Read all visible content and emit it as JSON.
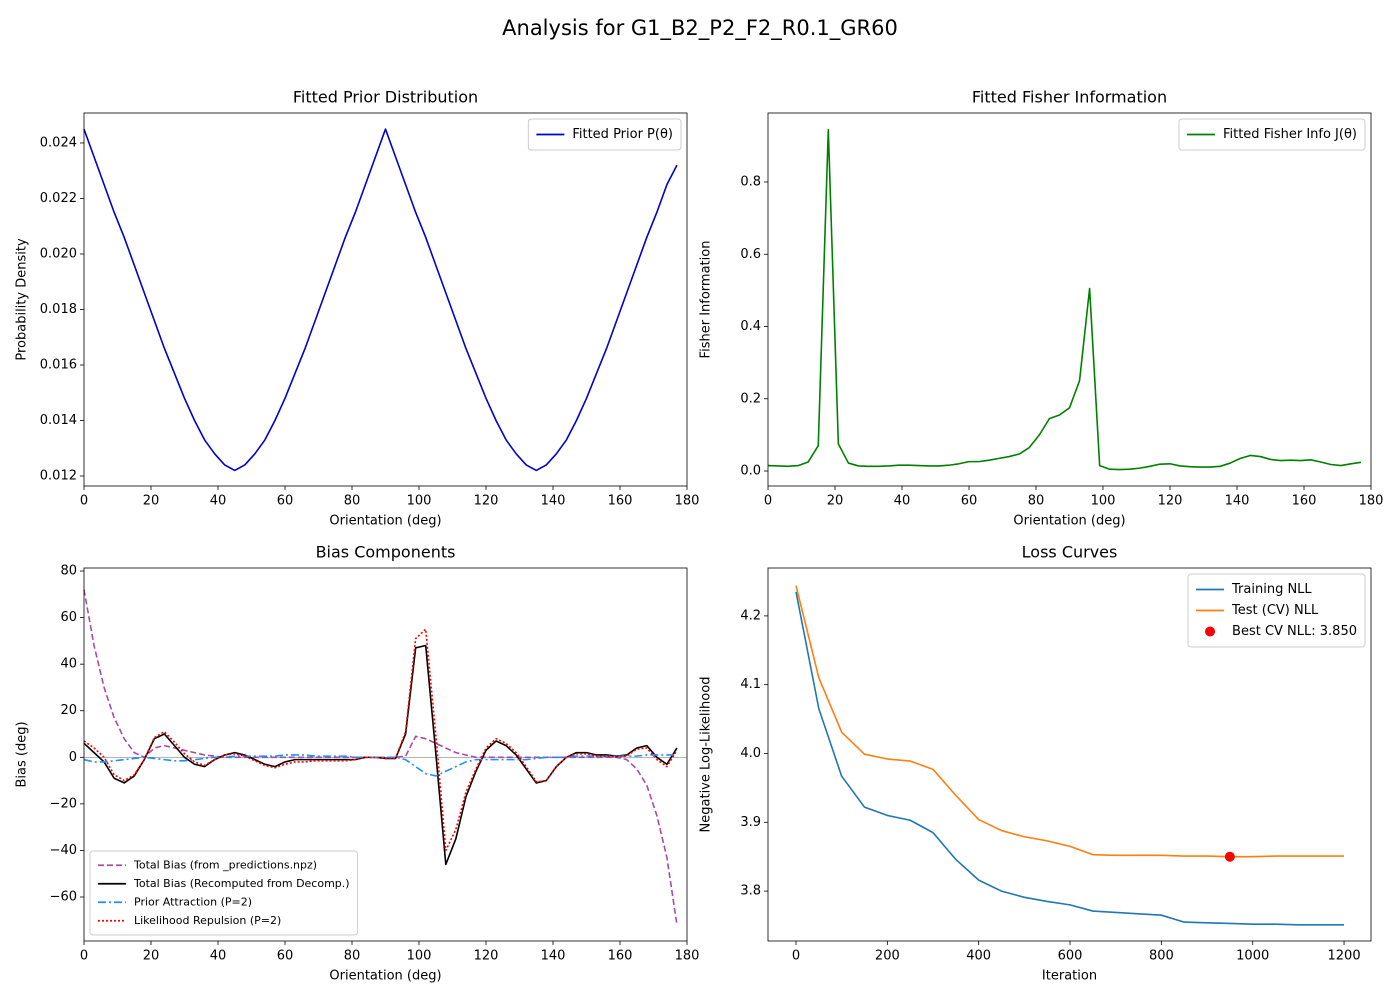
{
  "title": "Analysis for G1_B2_P2_F2_R0.1_GR60",
  "chart_data": [
    {
      "type": "line",
      "title": "Fitted Prior Distribution",
      "xlabel": "Orientation (deg)",
      "ylabel": "Probability Density",
      "x": [
        0,
        3,
        6,
        9,
        12,
        15,
        18,
        21,
        24,
        27,
        30,
        33,
        36,
        39,
        42,
        45,
        48,
        51,
        54,
        57,
        60,
        63,
        66,
        69,
        72,
        75,
        78,
        81,
        84,
        87,
        90,
        93,
        96,
        99,
        102,
        105,
        108,
        111,
        114,
        117,
        120,
        123,
        126,
        129,
        132,
        135,
        138,
        141,
        144,
        147,
        150,
        153,
        156,
        159,
        162,
        165,
        168,
        171,
        174,
        177
      ],
      "series": [
        {
          "name": "Fitted Prior P(θ)",
          "color": "#0000cd",
          "dash": "solid",
          "values": [
            0.0245,
            0.0235,
            0.0225,
            0.0215,
            0.0206,
            0.0196,
            0.0186,
            0.0176,
            0.0166,
            0.0157,
            0.0148,
            0.014,
            0.0133,
            0.0128,
            0.0124,
            0.0122,
            0.0124,
            0.0128,
            0.0133,
            0.014,
            0.0148,
            0.0157,
            0.0166,
            0.0176,
            0.0186,
            0.0196,
            0.0206,
            0.0215,
            0.0225,
            0.0235,
            0.0245,
            0.0235,
            0.0225,
            0.0215,
            0.0206,
            0.0196,
            0.0186,
            0.0176,
            0.0166,
            0.0157,
            0.0148,
            0.014,
            0.0133,
            0.0128,
            0.0124,
            0.0122,
            0.0124,
            0.0128,
            0.0133,
            0.014,
            0.0148,
            0.0157,
            0.0166,
            0.0176,
            0.0186,
            0.0196,
            0.0206,
            0.0215,
            0.0225,
            0.0232
          ]
        }
      ],
      "xlim": [
        0,
        180
      ],
      "ylim": [
        0.01164,
        0.02508
      ],
      "xticks": [
        0,
        20,
        40,
        60,
        80,
        100,
        120,
        140,
        160,
        180
      ],
      "yticks": [
        0.012,
        0.014,
        0.016,
        0.018,
        {
          "value": 0.02,
          "label": "0.020"
        },
        0.022,
        0.024
      ],
      "legend": "upper right"
    },
    {
      "type": "line",
      "title": "Fitted Fisher Information",
      "xlabel": "Orientation (deg)",
      "ylabel": "Fisher Information",
      "x": [
        0,
        3,
        6,
        9,
        12,
        15,
        18,
        21,
        24,
        27,
        30,
        33,
        36,
        39,
        42,
        45,
        48,
        51,
        54,
        57,
        60,
        63,
        66,
        69,
        72,
        75,
        78,
        81,
        84,
        87,
        90,
        93,
        96,
        99,
        102,
        105,
        108,
        111,
        114,
        117,
        120,
        123,
        126,
        129,
        132,
        135,
        138,
        141,
        144,
        147,
        150,
        153,
        156,
        159,
        162,
        165,
        168,
        171,
        174,
        177
      ],
      "series": [
        {
          "name": "Fitted Fisher Info J(θ)",
          "color": "#008000",
          "dash": "solid",
          "values": [
            0.015,
            0.014,
            0.013,
            0.015,
            0.025,
            0.07,
            0.945,
            0.075,
            0.022,
            0.014,
            0.013,
            0.013,
            0.014,
            0.016,
            0.016,
            0.015,
            0.014,
            0.014,
            0.016,
            0.02,
            0.026,
            0.026,
            0.03,
            0.035,
            0.04,
            0.047,
            0.065,
            0.1,
            0.145,
            0.155,
            0.175,
            0.25,
            0.505,
            0.015,
            0.005,
            0.004,
            0.005,
            0.008,
            0.013,
            0.019,
            0.02,
            0.014,
            0.012,
            0.011,
            0.011,
            0.013,
            0.022,
            0.035,
            0.043,
            0.04,
            0.032,
            0.029,
            0.03,
            0.029,
            0.031,
            0.025,
            0.018,
            0.015,
            0.02,
            0.024
          ]
        }
      ],
      "xlim": [
        0,
        180
      ],
      "ylim": [
        -0.0415,
        0.991
      ],
      "xticks": [
        0,
        20,
        40,
        60,
        80,
        100,
        120,
        140,
        160,
        180
      ],
      "yticks": [
        {
          "value": 0,
          "label": "0.0"
        },
        0.2,
        0.4,
        0.6,
        0.8
      ],
      "legend": "upper right"
    },
    {
      "type": "line",
      "title": "Bias Components",
      "xlabel": "Orientation (deg)",
      "ylabel": "Bias (deg)",
      "x": [
        0,
        3,
        6,
        9,
        12,
        15,
        18,
        21,
        24,
        27,
        30,
        33,
        36,
        39,
        42,
        45,
        48,
        51,
        54,
        57,
        60,
        63,
        66,
        69,
        72,
        75,
        78,
        81,
        84,
        87,
        90,
        93,
        96,
        99,
        102,
        105,
        108,
        111,
        114,
        117,
        120,
        123,
        126,
        129,
        132,
        135,
        138,
        141,
        144,
        147,
        150,
        153,
        156,
        159,
        162,
        165,
        168,
        171,
        174,
        177
      ],
      "hline": 0,
      "series": [
        {
          "name": "Total Bias (from _predictions.npz)",
          "color": "#a64ca6",
          "dash": "dashed",
          "values": [
            72,
            48,
            30,
            17,
            8,
            2,
            0,
            4,
            5,
            4,
            3,
            2,
            1,
            0.5,
            0,
            0,
            0,
            0,
            0,
            0,
            0,
            0,
            0,
            0,
            0,
            0,
            0,
            0,
            0,
            0,
            0,
            0,
            0.5,
            9,
            8,
            6,
            4,
            2,
            1,
            0,
            0,
            0,
            0,
            0,
            0,
            0,
            0,
            0,
            0,
            0,
            0,
            0,
            0,
            0,
            -1,
            -5,
            -12,
            -25,
            -43,
            -72
          ]
        },
        {
          "name": "Total Bias (Recomputed from Decomp.)",
          "color": "#000000",
          "dash": "solid",
          "values": [
            6,
            2,
            -2,
            -9,
            -11,
            -8,
            -1,
            8,
            10,
            5,
            0,
            -3,
            -4,
            -1,
            1,
            2,
            1,
            -1,
            -3,
            -4,
            -2,
            -1,
            -1,
            -1,
            -1,
            -1,
            -1,
            -1,
            0,
            0,
            -0.5,
            -0.5,
            10,
            47,
            48,
            2,
            -46,
            -35,
            -17,
            -6,
            3,
            7,
            5,
            1,
            -5,
            -11,
            -10,
            -4,
            0,
            2,
            2,
            1,
            1,
            0.5,
            1,
            4,
            5,
            0,
            -3,
            4
          ]
        },
        {
          "name": "Prior Attraction (P=2)",
          "color": "#1e90ff",
          "dash": "dashdot",
          "values": [
            -1,
            -2,
            -2,
            -1.5,
            -1,
            -0.5,
            0,
            -0.5,
            -1,
            -1.5,
            -1.5,
            -1,
            -0.5,
            0,
            0,
            0.5,
            0.5,
            0.5,
            0.5,
            0.5,
            1,
            1,
            1,
            0.5,
            0.5,
            0.5,
            0.5,
            0,
            0,
            0,
            0,
            0,
            -1,
            -4,
            -7,
            -8,
            -6,
            -4,
            -2,
            -1,
            -1,
            -1,
            -1,
            -1,
            -1,
            -0.5,
            0,
            0,
            0,
            0.5,
            0.5,
            0.5,
            0.5,
            0.5,
            0.5,
            0.5,
            1,
            1,
            1,
            1
          ]
        },
        {
          "name": "Likelihood Repulsion (P=2)",
          "color": "#ff0000",
          "dash": "dotted",
          "values": [
            7,
            4,
            0,
            -7.5,
            -10,
            -7.5,
            -1,
            8.5,
            11,
            6.5,
            1.5,
            -2,
            -3.5,
            -1,
            1,
            1.5,
            0.5,
            -1.5,
            -3.5,
            -4.5,
            -3,
            -2,
            -2,
            -1.5,
            -1.5,
            -1.5,
            -1.5,
            -1,
            0,
            0,
            -0.5,
            -0.5,
            11,
            51,
            55,
            10,
            -40,
            -31,
            -15,
            -5,
            4,
            8,
            6,
            2,
            -4,
            -10.5,
            -10,
            -4,
            0,
            1.5,
            1.5,
            0.5,
            0.5,
            0,
            0.5,
            3.5,
            4,
            -1,
            -4,
            3
          ]
        }
      ],
      "xlim": [
        0,
        180
      ],
      "ylim": [
        -78.9,
        81.3
      ],
      "xticks": [
        0,
        20,
        40,
        60,
        80,
        100,
        120,
        140,
        160,
        180
      ],
      "yticks": [
        {
          "value": -60,
          "label": "−60"
        },
        {
          "value": -40,
          "label": "−40"
        },
        {
          "value": -20,
          "label": "−20"
        },
        0,
        20,
        40,
        60,
        80
      ],
      "legend": "lower left"
    },
    {
      "type": "line",
      "title": "Loss Curves",
      "xlabel": "Iteration",
      "ylabel": "Negative Log-Likelihood",
      "x": [
        0,
        50,
        100,
        150,
        200,
        250,
        300,
        350,
        400,
        450,
        500,
        550,
        600,
        650,
        700,
        750,
        800,
        850,
        900,
        950,
        1000,
        1050,
        1100,
        1150,
        1200
      ],
      "series": [
        {
          "name": "Training NLL",
          "color": "#1f77b4",
          "dash": "solid",
          "values": [
            4.235,
            4.065,
            3.967,
            3.922,
            3.91,
            3.903,
            3.885,
            3.846,
            3.816,
            3.8,
            3.791,
            3.785,
            3.78,
            3.771,
            3.769,
            3.767,
            3.765,
            3.755,
            3.754,
            3.753,
            3.752,
            3.752,
            3.751,
            3.751,
            3.751
          ]
        },
        {
          "name": "Test (CV) NLL",
          "color": "#ff7f0e",
          "dash": "solid",
          "values": [
            4.244,
            4.11,
            4.031,
            3.999,
            3.992,
            3.989,
            3.977,
            3.939,
            3.904,
            3.888,
            3.879,
            3.873,
            3.865,
            3.853,
            3.852,
            3.852,
            3.852,
            3.851,
            3.851,
            3.85,
            3.85,
            3.851,
            3.851,
            3.851,
            3.851
          ]
        },
        {
          "name": "Best CV NLL: 3.850",
          "color": "#ff0000",
          "type": "scatter",
          "x": [
            950
          ],
          "values": [
            3.85
          ]
        }
      ],
      "xlim": [
        -61.3,
        1259
      ],
      "ylim": [
        3.7275,
        4.2696
      ],
      "xticks": [
        0,
        200,
        400,
        600,
        800,
        1000,
        1200
      ],
      "yticks": [
        3.8,
        3.9,
        {
          "value": 4,
          "label": "4.0"
        },
        4.1,
        4.2
      ],
      "legend": "upper right"
    }
  ]
}
